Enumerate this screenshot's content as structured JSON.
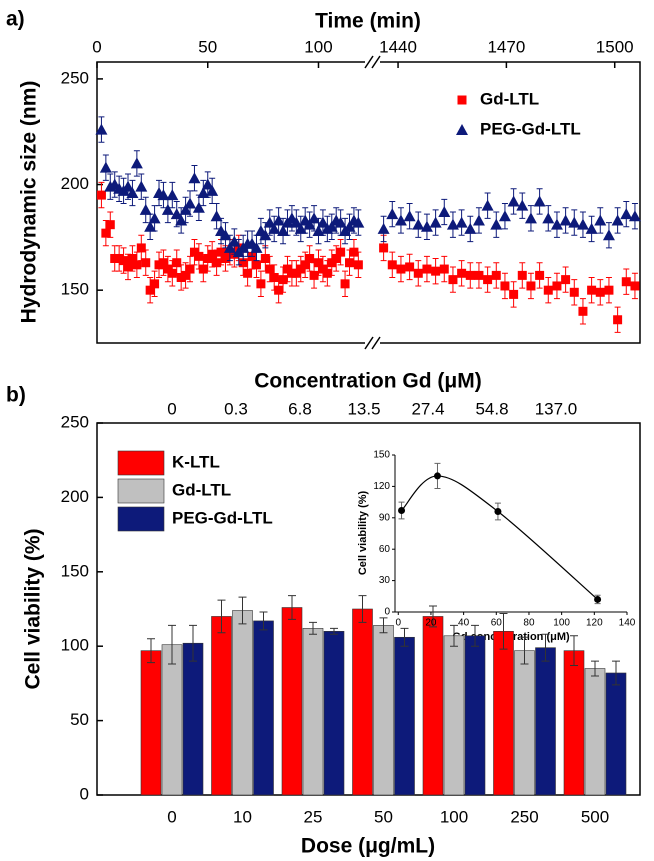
{
  "chart_data": [
    {
      "type": "scatter",
      "panel_label": "a)",
      "x_label": "Time (min)",
      "y_label": "Hydrodynamic size (nm)",
      "ylim": [
        125,
        258
      ],
      "yticks": [
        150,
        200,
        250
      ],
      "x_segments": [
        {
          "xlim": [
            0,
            121
          ],
          "xticks": [
            0,
            50,
            100
          ]
        },
        {
          "xlim": [
            1435,
            1507
          ],
          "xticks": [
            1440,
            1470,
            1500
          ]
        }
      ],
      "legend": "upper right",
      "x": [
        2,
        4,
        6,
        8,
        10,
        12,
        14,
        16,
        18,
        20,
        22,
        24,
        26,
        28,
        30,
        32,
        34,
        36,
        38,
        40,
        42,
        44,
        46,
        48,
        50,
        52,
        54,
        56,
        58,
        60,
        62,
        64,
        66,
        68,
        70,
        72,
        74,
        76,
        78,
        80,
        82,
        84,
        86,
        88,
        90,
        92,
        94,
        96,
        98,
        100,
        102,
        104,
        106,
        108,
        110,
        112,
        114,
        116,
        118,
        1436,
        1438.4,
        1440.8,
        1443.2,
        1445.6,
        1448,
        1450.4,
        1452.8,
        1455.2,
        1457.6,
        1460,
        1462.4,
        1464.8,
        1467.2,
        1469.6,
        1472,
        1474.4,
        1476.8,
        1479.2,
        1481.6,
        1484,
        1486.4,
        1488.8,
        1491.2,
        1493.6,
        1496,
        1498.4,
        1500.8,
        1503.2,
        1505.6
      ],
      "series": [
        {
          "name": "Gd-LTL",
          "color": "#ff0000",
          "marker": "square",
          "error": 6,
          "values": [
            195,
            177,
            181,
            165,
            165,
            164,
            161,
            165,
            162,
            170,
            163,
            150,
            153,
            162,
            163,
            160,
            158,
            163,
            156,
            157,
            160,
            168,
            166,
            160,
            165,
            167,
            163,
            168,
            165,
            168,
            167,
            170,
            163,
            158,
            166,
            162,
            153,
            165,
            160,
            156,
            150,
            155,
            160,
            158,
            158,
            160,
            162,
            165,
            157,
            163,
            160,
            158,
            163,
            165,
            168,
            153,
            163,
            168,
            162,
            170,
            162,
            160,
            161,
            158,
            160,
            159,
            160,
            155,
            158,
            157,
            157,
            155,
            157,
            152,
            148,
            157,
            152,
            157,
            150,
            152,
            155,
            149,
            140,
            150,
            149,
            150,
            136,
            154,
            152
          ]
        },
        {
          "name": "PEG-Gd-LTL",
          "color": "#0d1a7a",
          "marker": "triangle",
          "error": 6,
          "values": [
            226,
            208,
            199,
            200,
            198,
            197,
            199,
            196,
            210,
            199,
            188,
            180,
            184,
            196,
            195,
            188,
            195,
            186,
            183,
            188,
            191,
            203,
            189,
            196,
            200,
            197,
            185,
            178,
            176,
            170,
            173,
            168,
            170,
            172,
            172,
            170,
            178,
            176,
            182,
            179,
            183,
            178,
            182,
            184,
            182,
            179,
            183,
            181,
            184,
            178,
            182,
            179,
            180,
            183,
            182,
            178,
            180,
            183,
            182,
            179,
            186,
            183,
            185,
            181,
            180,
            182,
            187,
            181,
            182,
            179,
            183,
            190,
            181,
            185,
            192,
            190,
            184,
            192,
            184,
            181,
            183,
            182,
            181,
            179,
            183,
            176,
            183,
            186,
            185
          ]
        }
      ]
    },
    {
      "type": "bar",
      "panel_label": "b)",
      "x_label": "Dose (μg/mL)",
      "y_label": "Cell viability (%)",
      "categories": [
        "0",
        "10",
        "25",
        "50",
        "100",
        "250",
        "500"
      ],
      "x2_label": "Concentration Gd (μM)",
      "x2_categories": [
        "0",
        "0.3",
        "6.8",
        "13.5",
        "27.4",
        "54.8",
        "137.0"
      ],
      "ylim": [
        0,
        250
      ],
      "yticks": [
        0,
        50,
        100,
        150,
        200,
        250
      ],
      "legend": "upper left",
      "series": [
        {
          "name": "K-LTL",
          "color": "#ff0000",
          "values": [
            97,
            120,
            126,
            125,
            120,
            110,
            97
          ],
          "errors": [
            8,
            11,
            8,
            9,
            7,
            12,
            10
          ]
        },
        {
          "name": "Gd-LTL",
          "color": "#c0c0c0",
          "values": [
            101,
            124,
            112,
            114,
            107,
            97,
            85
          ],
          "errors": [
            13,
            9,
            4,
            5,
            7,
            9,
            5
          ]
        },
        {
          "name": "PEG-Gd-LTL",
          "color": "#0d1a7a",
          "values": [
            102,
            117,
            110,
            106,
            107,
            99,
            82
          ],
          "errors": [
            12,
            6,
            2,
            6,
            7,
            9,
            8
          ]
        }
      ]
    },
    {
      "type": "scatter-fit",
      "x_label": "Gd concentration (μM)",
      "y_label": "Cell viability (%)",
      "x": [
        2,
        24,
        61,
        122
      ],
      "values": [
        97,
        130,
        96,
        12
      ],
      "errors": [
        8,
        12,
        8,
        4
      ],
      "color": "#000000",
      "xlim": [
        -2,
        140
      ],
      "xticks": [
        0,
        20,
        40,
        60,
        80,
        100,
        120,
        140
      ],
      "ylim": [
        0,
        150
      ],
      "yticks": [
        0,
        30,
        60,
        90,
        120,
        150
      ]
    }
  ]
}
